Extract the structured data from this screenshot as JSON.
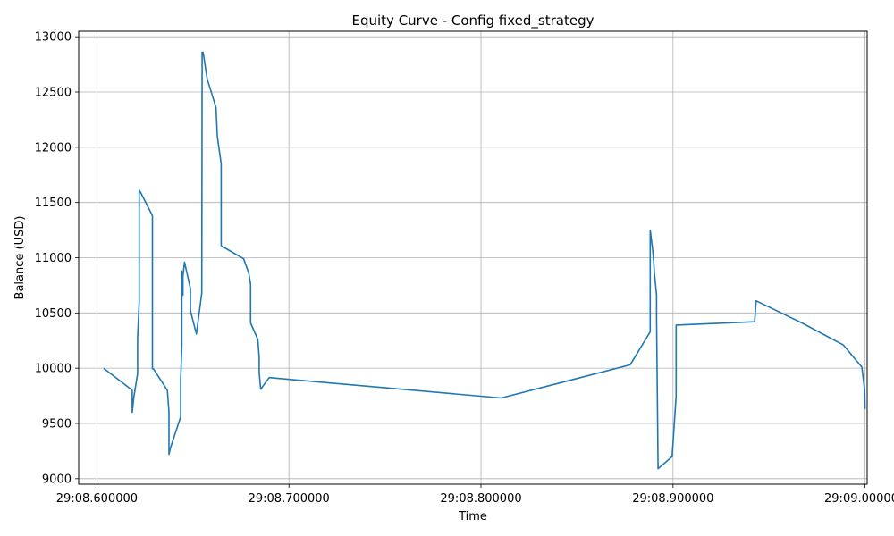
{
  "chart_data": {
    "type": "line",
    "title": "Equity Curve - Config fixed_strategy",
    "xlabel": "Time",
    "ylabel": "Balance (USD)",
    "grid": true,
    "line_color": "#1f77b4",
    "xlim": [
      0.5905,
      1.0011
    ],
    "ylim": [
      8950,
      13050
    ],
    "xticks": [
      {
        "value": 0.6,
        "label": "29:08.600000"
      },
      {
        "value": 0.7,
        "label": "29:08.700000"
      },
      {
        "value": 0.8,
        "label": "29:08.800000"
      },
      {
        "value": 0.9,
        "label": "29:08.900000"
      },
      {
        "value": 1.0,
        "label": "29:09.000000"
      }
    ],
    "yticks": [
      {
        "value": 9000,
        "label": "9000"
      },
      {
        "value": 9500,
        "label": "9500"
      },
      {
        "value": 10000,
        "label": "10000"
      },
      {
        "value": 10500,
        "label": "10500"
      },
      {
        "value": 11000,
        "label": "11000"
      },
      {
        "value": 11500,
        "label": "11500"
      },
      {
        "value": 12000,
        "label": "12000"
      },
      {
        "value": 12500,
        "label": "12500"
      },
      {
        "value": 13000,
        "label": "13000"
      }
    ],
    "series": [
      {
        "x": [
          0.6035,
          0.6184,
          0.6184,
          0.6192,
          0.6212,
          0.6212,
          0.622,
          0.622,
          0.6228,
          0.6289,
          0.6289,
          0.6296,
          0.6367,
          0.6375,
          0.6375,
          0.6383,
          0.6436,
          0.6436,
          0.6442,
          0.6442,
          0.6448,
          0.6448,
          0.6456,
          0.6487,
          0.6487,
          0.6518,
          0.6546,
          0.6548,
          0.6553,
          0.6574,
          0.662,
          0.6627,
          0.6647,
          0.6647,
          0.6655,
          0.6764,
          0.6791,
          0.68,
          0.68,
          0.6838,
          0.6845,
          0.6845,
          0.6853,
          0.6897,
          0.8105,
          0.8777,
          0.8881,
          0.8881,
          0.8894,
          0.89,
          0.8903,
          0.8914,
          0.8914,
          0.8922,
          0.8995,
          0.9016,
          0.9016,
          0.9019,
          0.9425,
          0.9433,
          0.9671,
          0.9887,
          0.9983,
          0.9998,
          1.0
        ],
        "y": [
          10000,
          9800,
          9600,
          9730,
          9950,
          10270,
          10600,
          11610,
          11590,
          11380,
          9995,
          9990,
          9800,
          9600,
          9220,
          9280,
          9560,
          9900,
          10200,
          10880,
          10660,
          10830,
          10960,
          10720,
          10520,
          10310,
          10680,
          12860,
          12860,
          12620,
          12360,
          12100,
          11850,
          11110,
          11100,
          10990,
          10860,
          10760,
          10410,
          10260,
          10100,
          9960,
          9810,
          9915,
          9730,
          10030,
          10330,
          11250,
          11070,
          10950,
          10860,
          10660,
          10460,
          9090,
          9200,
          9750,
          10390,
          10390,
          10420,
          10610,
          10410,
          10210,
          10010,
          9800,
          9630
        ]
      }
    ]
  }
}
